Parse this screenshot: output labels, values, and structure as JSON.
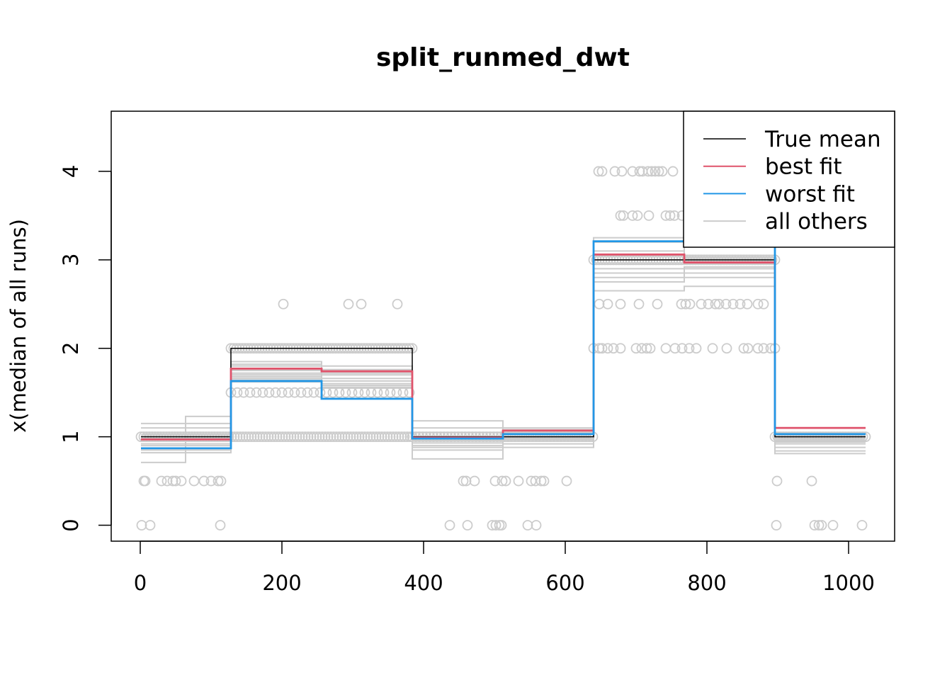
{
  "chart_data": {
    "type": "line",
    "title": "split_runmed_dwt",
    "xlabel": "",
    "ylabel": "x(median of all runs)",
    "xlim": [
      -41,
      1065
    ],
    "ylim": [
      -0.18,
      4.68
    ],
    "xticks": [
      0,
      200,
      400,
      600,
      800,
      1000
    ],
    "yticks": [
      0,
      1,
      2,
      3,
      4
    ],
    "grid": false,
    "legend": {
      "placement": "top-right",
      "entries": [
        {
          "label": "True mean",
          "color": "#000000"
        },
        {
          "label": "best fit",
          "color": "#DF536B"
        },
        {
          "label": "worst fit",
          "color": "#2297E6"
        },
        {
          "label": "all others",
          "color": "#CCCCCC"
        }
      ]
    },
    "breaks": [
      1,
      128,
      256,
      384,
      512,
      640,
      768,
      896,
      1024
    ],
    "true_mean": [
      1,
      2,
      2,
      1,
      1,
      3,
      3,
      1
    ],
    "best_fit": [
      0.97,
      1.77,
      1.74,
      0.99,
      1.07,
      3.06,
      2.97,
      1.1
    ],
    "worst_fit": [
      0.87,
      1.63,
      1.43,
      0.98,
      1.03,
      3.21,
      3.21,
      1.03
    ],
    "all_others": [
      [
        1.15,
        1.85,
        1.8,
        1.18,
        1.1,
        3.25,
        3.05,
        1.05
      ],
      [
        1.1,
        1.82,
        1.76,
        1.1,
        1.08,
        3.2,
        3.02,
        1.02
      ],
      [
        1.05,
        1.8,
        1.72,
        1.05,
        1.05,
        3.1,
        3.0,
        1.0
      ],
      [
        1.02,
        1.75,
        1.7,
        1.0,
        1.03,
        3.0,
        2.98,
        0.98
      ],
      [
        0.98,
        1.72,
        1.66,
        0.96,
        1.0,
        2.95,
        2.95,
        0.96
      ],
      [
        0.95,
        1.7,
        1.63,
        0.93,
        0.98,
        2.9,
        2.92,
        0.94
      ],
      [
        0.92,
        1.68,
        1.6,
        0.9,
        0.97,
        2.85,
        2.9,
        0.92
      ],
      [
        0.9,
        1.66,
        1.58,
        0.88,
        0.95,
        2.8,
        2.85,
        0.88
      ],
      [
        0.85,
        1.64,
        1.56,
        0.85,
        0.92,
        2.75,
        2.8,
        0.84
      ],
      [
        0.82,
        1.62,
        1.55,
        0.75,
        0.88,
        2.65,
        2.7,
        0.81
      ]
    ],
    "extra_other_steps": [
      {
        "from": 1,
        "to": 64,
        "value": 0.71
      },
      {
        "from": 64,
        "to": 128,
        "value": 1.23
      }
    ],
    "points": {
      "sparse": [
        {
          "y": 4,
          "x": [
            647,
            652,
            670,
            680,
            695,
            705,
            709,
            717,
            722,
            727,
            732,
            737,
            752
          ]
        },
        {
          "y": 3.5,
          "x": [
            678,
            682,
            695,
            702,
            718,
            742,
            748,
            754,
            765
          ]
        },
        {
          "y": 2.5,
          "x": [
            202,
            294,
            312,
            363,
            648,
            660,
            678,
            704,
            730,
            764,
            770,
            776,
            792,
            802,
            812,
            817,
            827,
            837,
            847,
            857,
            872,
            880
          ]
        },
        {
          "y": 2,
          "x": [
            640,
            648,
            652,
            660,
            668,
            678,
            700,
            708,
            715,
            720,
            742,
            755,
            765,
            775,
            785,
            808,
            828,
            852,
            858,
            872,
            880,
            890,
            896
          ]
        },
        {
          "y": 0.5,
          "x": [
            5,
            7,
            30,
            38,
            46,
            50,
            58,
            76,
            90,
            100,
            110,
            114,
            456,
            460,
            472,
            501,
            511,
            516,
            534,
            552,
            558,
            566,
            570,
            602,
            899,
            948
          ]
        },
        {
          "y": 0,
          "x": [
            2,
            14,
            113,
            437,
            462,
            497,
            502,
            507,
            510,
            547,
            559,
            898,
            952,
            958,
            962,
            978,
            1019
          ]
        }
      ],
      "dense": [
        {
          "y": 1,
          "from": 1,
          "to": 384,
          "step": 4
        },
        {
          "y": 1,
          "from": 384,
          "to": 640,
          "step": 5
        },
        {
          "y": 1,
          "from": 896,
          "to": 1024,
          "step": 4
        },
        {
          "y": 2,
          "from": 128,
          "to": 384,
          "step": 4
        },
        {
          "y": 1.5,
          "from": 128,
          "to": 384,
          "step": 9
        },
        {
          "y": 3,
          "from": 640,
          "to": 896,
          "step": 4
        }
      ]
    }
  }
}
